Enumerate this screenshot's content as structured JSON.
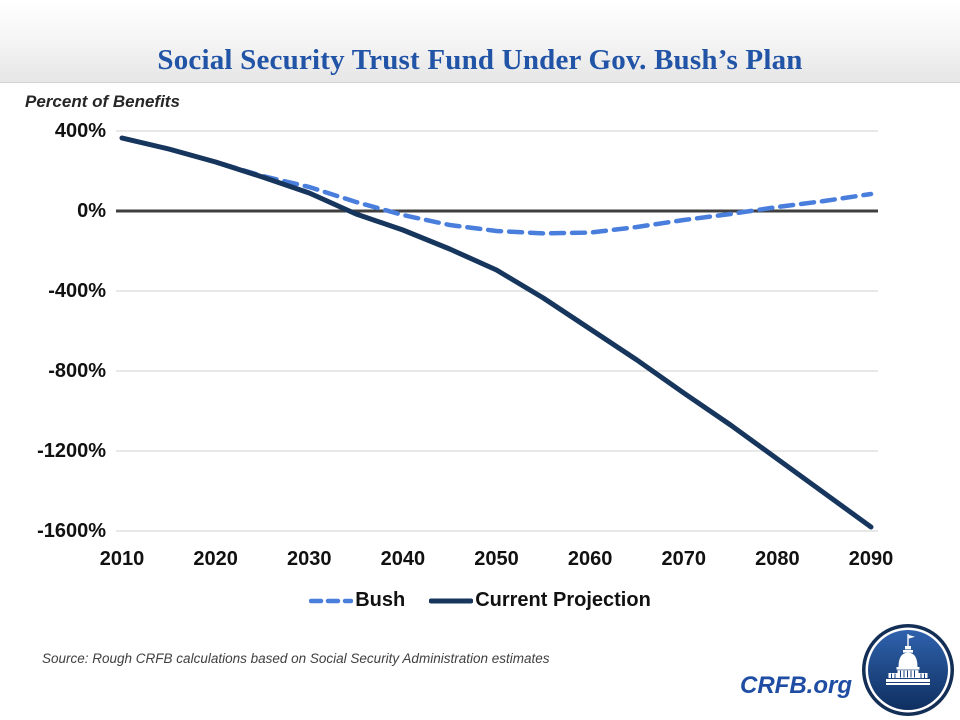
{
  "header": {
    "title": "Social Security Trust Fund Under Gov. Bush’s Plan"
  },
  "axis_unit_label": "Percent of Benefits",
  "footer": {
    "source": "Source: Rough CRFB calculations based on Social Security Administration estimates",
    "brand": "CRFB.org"
  },
  "icons": {
    "logo": "capitol-dome-icon"
  },
  "colors": {
    "title_blue": "#2153a6",
    "bush_blue": "#4a7edd",
    "projection_navy": "#17365d",
    "zero_line": "#3f3f3f",
    "gridline": "#d9d9d9",
    "brand_blue": "#1e4da3",
    "logo_navy": "#132f56"
  },
  "chart_data": {
    "type": "line",
    "title": "Social Security Trust Fund Under Gov. Bush’s Plan",
    "xlabel": "",
    "ylabel": "Percent of Benefits",
    "xlim": [
      2010,
      2090
    ],
    "ylim": [
      -1600,
      400
    ],
    "grid": true,
    "legend_position": "bottom",
    "x": [
      2010,
      2015,
      2020,
      2025,
      2030,
      2035,
      2040,
      2045,
      2050,
      2055,
      2060,
      2065,
      2070,
      2075,
      2080,
      2085,
      2090
    ],
    "series": [
      {
        "name": "Bush",
        "color": "#4a7edd",
        "style": "dashed",
        "values": [
          365,
          310,
          245,
          175,
          120,
          45,
          -20,
          -70,
          -100,
          -112,
          -108,
          -80,
          -45,
          -15,
          20,
          50,
          85
        ]
      },
      {
        "name": "Current Projection",
        "color": "#17365d",
        "style": "solid",
        "values": [
          365,
          310,
          245,
          170,
          90,
          -15,
          -95,
          -190,
          -295,
          -435,
          -590,
          -745,
          -910,
          -1070,
          -1240,
          -1410,
          -1580
        ]
      }
    ],
    "yticks": [
      {
        "value": 400,
        "label": "400%"
      },
      {
        "value": 0,
        "label": "0%"
      },
      {
        "value": -400,
        "label": "-400%"
      },
      {
        "value": -800,
        "label": "-800%"
      },
      {
        "value": -1200,
        "label": "-1200%"
      },
      {
        "value": -1600,
        "label": "-1600%"
      }
    ],
    "xticks": [
      {
        "value": 2010,
        "label": "2010"
      },
      {
        "value": 2020,
        "label": "2020"
      },
      {
        "value": 2030,
        "label": "2030"
      },
      {
        "value": 2040,
        "label": "2040"
      },
      {
        "value": 2050,
        "label": "2050"
      },
      {
        "value": 2060,
        "label": "2060"
      },
      {
        "value": 2070,
        "label": "2070"
      },
      {
        "value": 2080,
        "label": "2080"
      },
      {
        "value": 2090,
        "label": "2090"
      }
    ]
  }
}
